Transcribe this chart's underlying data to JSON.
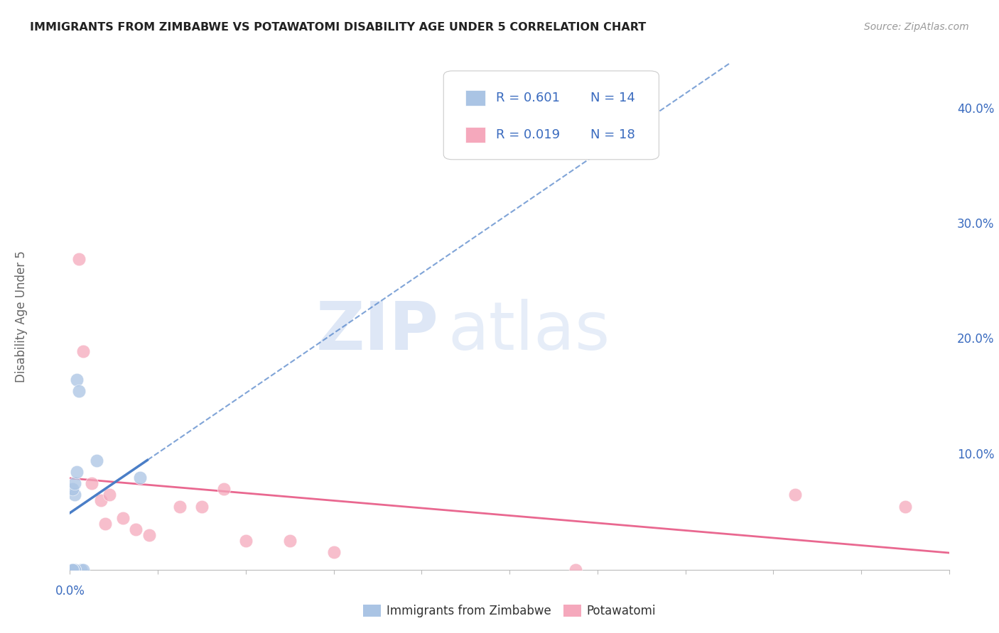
{
  "title": "IMMIGRANTS FROM ZIMBABWE VS POTAWATOMI DISABILITY AGE UNDER 5 CORRELATION CHART",
  "source": "Source: ZipAtlas.com",
  "ylabel": "Disability Age Under 5",
  "legend_r1": "R = 0.601",
  "legend_n1": "N = 14",
  "legend_r2": "R = 0.019",
  "legend_n2": "N = 18",
  "label1": "Immigrants from Zimbabwe",
  "label2": "Potawatomi",
  "color1": "#aac4e4",
  "color2": "#f5a8bc",
  "trendline1_color": "#4a7ec7",
  "trendline2_color": "#e8608a",
  "watermark_zip": "ZIP",
  "watermark_atlas": "atlas",
  "xlim": [
    0.0,
    0.2
  ],
  "ylim": [
    0.0,
    0.44
  ],
  "ytick_vals": [
    0.1,
    0.2,
    0.3,
    0.4
  ],
  "ytick_labs": [
    "10.0%",
    "20.0%",
    "30.0%",
    "40.0%"
  ],
  "zimbabwe_x": [
    0.0015,
    0.002,
    0.0025,
    0.003,
    0.001,
    0.001,
    0.0005,
    0.0005,
    0.001,
    0.0005,
    0.001,
    0.0015,
    0.006,
    0.016
  ],
  "zimbabwe_y": [
    0.165,
    0.155,
    0.0,
    0.0,
    0.0,
    0.0,
    0.0,
    0.0,
    0.065,
    0.07,
    0.075,
    0.085,
    0.095,
    0.08
  ],
  "potawatomi_x": [
    0.002,
    0.003,
    0.005,
    0.007,
    0.008,
    0.009,
    0.012,
    0.015,
    0.018,
    0.025,
    0.03,
    0.035,
    0.04,
    0.05,
    0.06,
    0.115,
    0.165,
    0.19
  ],
  "potawatomi_y": [
    0.27,
    0.19,
    0.075,
    0.06,
    0.04,
    0.065,
    0.045,
    0.035,
    0.03,
    0.055,
    0.055,
    0.07,
    0.025,
    0.025,
    0.015,
    0.0,
    0.065,
    0.055
  ]
}
